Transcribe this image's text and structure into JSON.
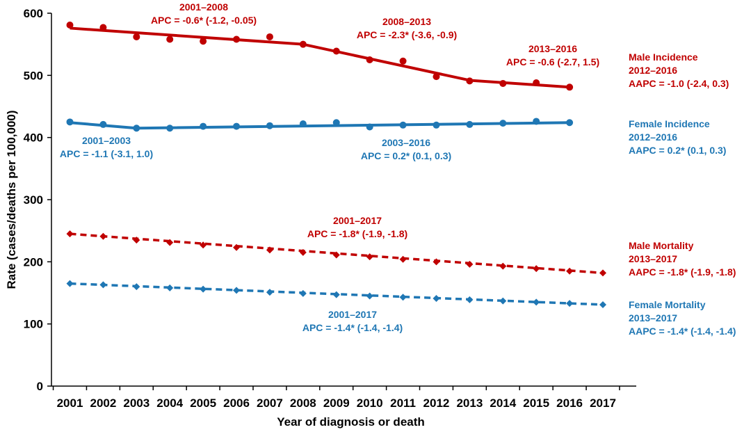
{
  "chart_data": {
    "type": "line",
    "xlabel": "Year of diagnosis or death",
    "ylabel": "Rate (cases/deaths per 100,000)",
    "ylim": [
      0,
      600
    ],
    "yticks": [
      "0",
      "100",
      "200",
      "300",
      "400",
      "500",
      "600"
    ],
    "categories": [
      "2001",
      "2002",
      "2003",
      "2004",
      "2005",
      "2006",
      "2007",
      "2008",
      "2009",
      "2010",
      "2011",
      "2012",
      "2013",
      "2014",
      "2015",
      "2016",
      "2017"
    ],
    "grid": false,
    "series": [
      {
        "key": "male_incidence",
        "color": "#c00000",
        "style": "solid",
        "marker": "circle",
        "observed": [
          581,
          577,
          562,
          558,
          555,
          558,
          562,
          550,
          539,
          525,
          523,
          498,
          491,
          487,
          488,
          481,
          null
        ],
        "fitted": [
          [
            2001,
            576
          ],
          [
            2008,
            550
          ],
          [
            2013,
            492
          ],
          [
            2016,
            481
          ]
        ],
        "label": [
          "Male Incidence",
          "2012–2016",
          "AAPC = -1.0 (-2.4, 0.3)"
        ]
      },
      {
        "key": "female_incidence",
        "color": "#1f77b4",
        "style": "solid",
        "marker": "circle",
        "observed": [
          425,
          421,
          415,
          415,
          418,
          418,
          419,
          422,
          424,
          417,
          420,
          420,
          421,
          423,
          426,
          424,
          null
        ],
        "fitted": [
          [
            2001,
            424
          ],
          [
            2003,
            415
          ],
          [
            2016,
            424
          ]
        ],
        "label": [
          "Female Incidence",
          "2012–2016",
          "AAPC = 0.2* (0.1, 0.3)"
        ]
      },
      {
        "key": "male_mortality",
        "color": "#c00000",
        "style": "dashed",
        "marker": "diamond",
        "observed": [
          245,
          241,
          235,
          231,
          227,
          223,
          219,
          215,
          211,
          208,
          204,
          200,
          196,
          193,
          189,
          185,
          182
        ],
        "fitted": [
          [
            2001,
            245
          ],
          [
            2017,
            182
          ]
        ],
        "label": [
          "Male Mortality",
          "2013–2017",
          "AAPC = -1.8* (-1.9, -1.8)"
        ]
      },
      {
        "key": "female_mortality",
        "color": "#1f77b4",
        "style": "dashed",
        "marker": "diamond",
        "observed": [
          165,
          163,
          160,
          158,
          156,
          154,
          151,
          149,
          147,
          145,
          143,
          141,
          139,
          137,
          135,
          133,
          131
        ],
        "fitted": [
          [
            2001,
            165
          ],
          [
            2017,
            131
          ]
        ],
        "label": [
          "Female Mortality",
          "2013–2017",
          "AAPC = -1.4* (-1.4, -1.4)"
        ]
      }
    ],
    "segment_annotations": [
      {
        "color": "#c00000",
        "lines": [
          "2001–2008",
          "APC = -0.6* (-1.2, -0.05)"
        ]
      },
      {
        "color": "#c00000",
        "lines": [
          "2008–2013",
          "APC = -2.3* (-3.6, -0.9)"
        ]
      },
      {
        "color": "#c00000",
        "lines": [
          "2013–2016",
          "APC = -0.6 (-2.7, 1.5)"
        ]
      },
      {
        "color": "#1f77b4",
        "lines": [
          "2001–2003",
          "APC = -1.1 (-3.1, 1.0)"
        ]
      },
      {
        "color": "#1f77b4",
        "lines": [
          "2003–2016",
          "APC = 0.2* (0.1, 0.3)"
        ]
      },
      {
        "color": "#c00000",
        "lines": [
          "2001–2017",
          "APC = -1.8* (-1.9, -1.8)"
        ]
      },
      {
        "color": "#1f77b4",
        "lines": [
          "2001–2017",
          "APC = -1.4* (-1.4, -1.4)"
        ]
      }
    ]
  }
}
